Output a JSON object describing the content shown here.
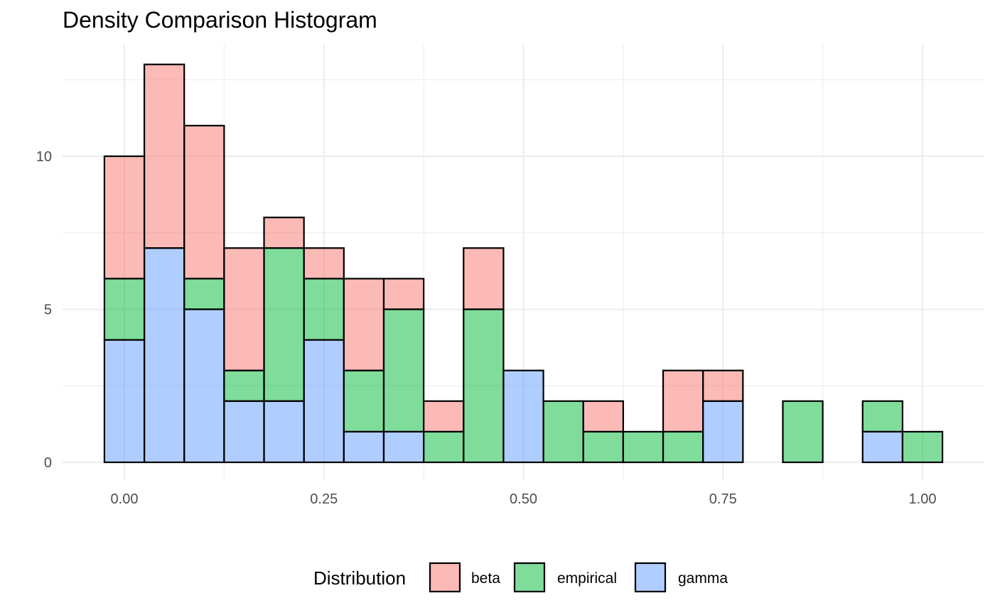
{
  "chart_data": {
    "type": "bar",
    "stacked": true,
    "title": "Density Comparison Histogram",
    "xlabel": "",
    "ylabel": "",
    "bin_width": 0.05,
    "bin_centers": [
      0.0,
      0.05,
      0.1,
      0.15,
      0.2,
      0.25,
      0.3,
      0.35,
      0.4,
      0.45,
      0.5,
      0.55,
      0.6,
      0.65,
      0.7,
      0.75,
      0.8,
      0.85,
      0.9,
      0.95,
      1.0
    ],
    "stack_order": [
      "gamma",
      "empirical",
      "beta"
    ],
    "series": [
      {
        "name": "beta",
        "color": "#F8766D",
        "values": [
          4,
          6,
          5,
          4,
          1,
          1,
          3,
          1,
          1,
          2,
          0,
          0,
          1,
          0,
          2,
          1,
          0,
          0,
          0,
          0,
          0
        ]
      },
      {
        "name": "empirical",
        "color": "#00BA38",
        "values": [
          2,
          0,
          1,
          1,
          5,
          2,
          2,
          4,
          1,
          5,
          0,
          2,
          1,
          1,
          1,
          0,
          0,
          2,
          0,
          1,
          1
        ]
      },
      {
        "name": "gamma",
        "color": "#619CFF",
        "values": [
          4,
          7,
          5,
          2,
          2,
          4,
          1,
          1,
          0,
          0,
          3,
          0,
          0,
          0,
          0,
          2,
          0,
          0,
          0,
          1,
          0
        ]
      }
    ],
    "xlim": [
      -0.025,
      1.025
    ],
    "ylim": [
      0,
      13
    ],
    "x_ticks": [
      0.0,
      0.25,
      0.5,
      0.75,
      1.0
    ],
    "x_tick_labels": [
      "0.00",
      "0.25",
      "0.50",
      "0.75",
      "1.00"
    ],
    "y_ticks": [
      0,
      5,
      10
    ],
    "y_tick_labels": [
      "0",
      "5",
      "10"
    ],
    "grid": true,
    "fill_opacity": 0.5,
    "bar_outline": "#000000",
    "legend": {
      "title": "Distribution",
      "position": "bottom",
      "labels": [
        "beta",
        "empirical",
        "gamma"
      ]
    }
  }
}
